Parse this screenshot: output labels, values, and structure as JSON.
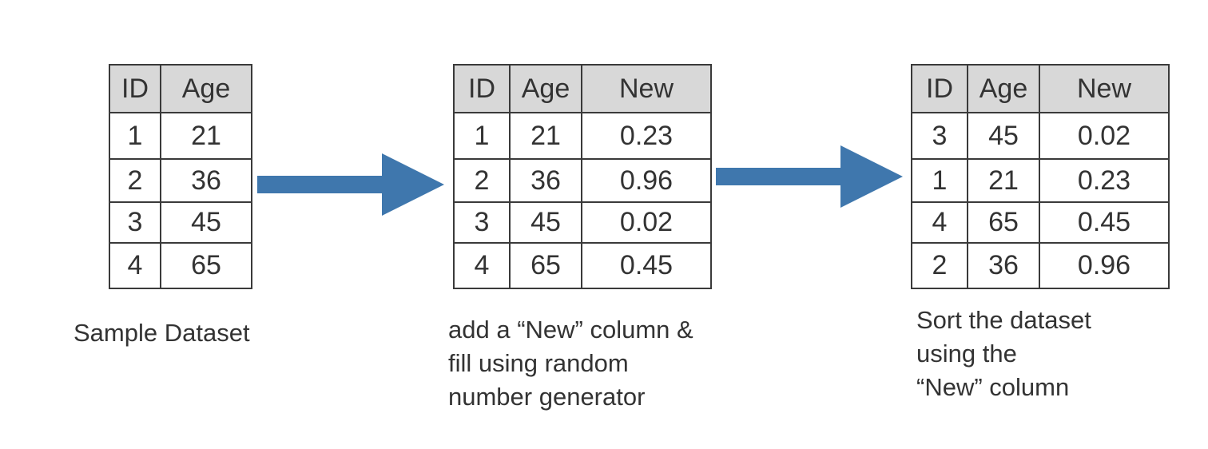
{
  "tables": {
    "sample": {
      "headers": [
        "ID",
        "Age"
      ],
      "rows": [
        [
          "1",
          "21"
        ],
        [
          "2",
          "36"
        ],
        [
          "3",
          "45"
        ],
        [
          "4",
          "65"
        ]
      ]
    },
    "added": {
      "headers": [
        "ID",
        "Age",
        "New"
      ],
      "rows": [
        [
          "1",
          "21",
          "0.23"
        ],
        [
          "2",
          "36",
          "0.96"
        ],
        [
          "3",
          "45",
          "0.02"
        ],
        [
          "4",
          "65",
          "0.45"
        ]
      ]
    },
    "sorted": {
      "headers": [
        "ID",
        "Age",
        "New"
      ],
      "rows": [
        [
          "3",
          "45",
          "0.02"
        ],
        [
          "1",
          "21",
          "0.23"
        ],
        [
          "4",
          "65",
          "0.45"
        ],
        [
          "2",
          "36",
          "0.96"
        ]
      ]
    }
  },
  "captions": {
    "sample": [
      "Sample Dataset"
    ],
    "added": [
      "add a “New” column &",
      "fill using random",
      "number generator"
    ],
    "sorted": [
      "Sort the dataset",
      "using the",
      "“New” column"
    ]
  },
  "colors": {
    "arrow": "#3f77ad",
    "header_fill": "#d8d8d8",
    "border": "#3a3a3a",
    "text": "#333333"
  }
}
